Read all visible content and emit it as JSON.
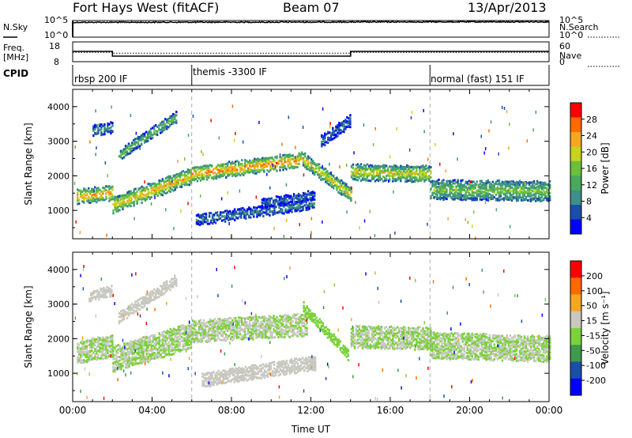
{
  "header": {
    "station": "Fort Hays West (fitACF)",
    "beam": "Beam 07",
    "date": "13/Apr/2013"
  },
  "top_panels": {
    "nsky_label": "N.Sky",
    "nsearch_label": "N.Search",
    "freq_label_1": "Freq.",
    "freq_label_2": "[MHz]",
    "nave_label": "Nave",
    "cpid_label": "CPID",
    "nsky_ticks": [
      "10^5",
      "10^0"
    ],
    "nsearch_ticks": [
      "10^5",
      "10^0"
    ],
    "freq_ticks": [
      "18",
      "8"
    ],
    "nave_ticks": [
      "60",
      "0"
    ]
  },
  "cpid_segments": [
    {
      "label": "rbsp 200 IF",
      "start_hour": 0
    },
    {
      "label": "themis -3300 IF",
      "start_hour": 6
    },
    {
      "label": "normal (fast) 151 IF",
      "start_hour": 18
    }
  ],
  "colorbars": {
    "power": {
      "title": "Power [dB]",
      "ticks": [
        "28",
        "24",
        "20",
        "16",
        "12",
        "8",
        "4"
      ]
    },
    "velocity": {
      "title": "Velocity [m s⁻¹]",
      "ticks": [
        "200",
        "100",
        "50",
        "15",
        "-15",
        "-50",
        "-100",
        "-200"
      ]
    }
  },
  "chart_data": [
    {
      "type": "line",
      "panel": "noise",
      "ylabel": "N.Sky / N.Search",
      "y_scale": "log",
      "ylim": [
        1,
        100000
      ],
      "x_hours": [
        0,
        0.1,
        6,
        12,
        18,
        24
      ],
      "series": [
        {
          "name": "N.Sky",
          "values": [
            10000,
            30000,
            32000,
            35000,
            40000,
            42000
          ]
        },
        {
          "name": "N.Search",
          "values": [
            10000,
            25000,
            28000,
            30000,
            36000,
            38000
          ]
        }
      ]
    },
    {
      "type": "line",
      "panel": "frequency",
      "ylabel": "Freq. [MHz]",
      "ylim": [
        8,
        18
      ],
      "x_hours": [
        0,
        2,
        2,
        14,
        14,
        24
      ],
      "series": [
        {
          "name": "Freq.",
          "values": [
            13.2,
            13.2,
            10.8,
            10.8,
            13.2,
            13.2
          ]
        },
        {
          "name": "Nave",
          "values": [
            28,
            28,
            26,
            26,
            28,
            28
          ]
        }
      ]
    },
    {
      "type": "heatmap",
      "panel": "power",
      "ylabel": "Slant Range [km]",
      "xlabel": "Time UT",
      "x_ticks": [
        "00:00",
        "04:00",
        "08:00",
        "12:00",
        "16:00",
        "20:00",
        "00:00"
      ],
      "y_ticks": [
        "1000",
        "2000",
        "3000",
        "4000"
      ],
      "xlim": [
        0,
        24
      ],
      "ylim": [
        180,
        4500
      ],
      "colorscale": [
        "#0000ff",
        "#1a4fa8",
        "#3e8f8a",
        "#48a85e",
        "#6cbf3c",
        "#c6d41e",
        "#f5a623",
        "#ff6a00",
        "#ff0000"
      ],
      "value_range": [
        0,
        30
      ],
      "bands": [
        {
          "t0": 0.2,
          "t1": 2.0,
          "r0": 1400,
          "r1": 1500,
          "width": 380,
          "power": 20
        },
        {
          "t0": 2.0,
          "t1": 6.0,
          "r0": 1150,
          "r1": 2000,
          "width": 420,
          "power": 19
        },
        {
          "t0": 6.0,
          "t1": 11.5,
          "r0": 2050,
          "r1": 2450,
          "width": 380,
          "power": 21
        },
        {
          "t0": 11.5,
          "t1": 14.0,
          "r0": 2500,
          "r1": 1450,
          "width": 360,
          "power": 18
        },
        {
          "t0": 14.0,
          "t1": 18.0,
          "r0": 2100,
          "r1": 2050,
          "width": 420,
          "power": 17
        },
        {
          "t0": 18.0,
          "t1": 24.0,
          "r0": 1600,
          "r1": 1550,
          "width": 520,
          "power": 13
        },
        {
          "t0": 1.0,
          "t1": 2.0,
          "r0": 3300,
          "r1": 3400,
          "width": 260,
          "power": 9
        },
        {
          "t0": 2.3,
          "t1": 5.2,
          "r0": 2600,
          "r1": 3700,
          "width": 260,
          "power": 12
        },
        {
          "t0": 6.2,
          "t1": 12.2,
          "r0": 720,
          "r1": 1200,
          "width": 260,
          "power": 7
        },
        {
          "t0": 9.5,
          "t1": 12.2,
          "r0": 1200,
          "r1": 1450,
          "width": 220,
          "power": 6
        },
        {
          "t0": 12.5,
          "t1": 14.0,
          "r0": 3000,
          "r1": 3600,
          "width": 300,
          "power": 6
        }
      ]
    },
    {
      "type": "heatmap",
      "panel": "velocity",
      "ylabel": "Slant Range [km]",
      "xlabel": "Time UT",
      "x_ticks": [
        "00:00",
        "04:00",
        "08:00",
        "12:00",
        "16:00",
        "20:00",
        "00:00"
      ],
      "y_ticks": [
        "1000",
        "2000",
        "3000",
        "4000"
      ],
      "xlim": [
        0,
        24
      ],
      "ylim": [
        180,
        4500
      ],
      "colorscale": [
        "#ff0000",
        "#ff6a00",
        "#f5a623",
        "#c8c8c0",
        "#7bd13a",
        "#3e9a4e",
        "#1a4fa8",
        "#0000ff"
      ],
      "value_range": [
        -250,
        250
      ],
      "bands": [
        {
          "t0": 0.2,
          "t1": 2.0,
          "r0": 1600,
          "r1": 1800,
          "width": 600,
          "velocity": 0
        },
        {
          "t0": 2.0,
          "t1": 6.0,
          "r0": 1400,
          "r1": 2100,
          "width": 700,
          "velocity": 0
        },
        {
          "t0": 6.0,
          "t1": 11.8,
          "r0": 2200,
          "r1": 2400,
          "width": 600,
          "velocity": 0
        },
        {
          "t0": 14.0,
          "t1": 18.0,
          "r0": 2050,
          "r1": 2000,
          "width": 600,
          "velocity": 0
        },
        {
          "t0": 18.0,
          "t1": 24.0,
          "r0": 1800,
          "r1": 1700,
          "width": 700,
          "velocity": 0
        },
        {
          "t0": 0.8,
          "t1": 2.0,
          "r0": 3200,
          "r1": 3400,
          "width": 250,
          "velocity": -40
        },
        {
          "t0": 2.3,
          "t1": 5.2,
          "r0": 2600,
          "r1": 3700,
          "width": 260,
          "velocity": -45
        },
        {
          "t0": 6.5,
          "t1": 12.2,
          "r0": 800,
          "r1": 1300,
          "width": 360,
          "velocity": -45
        },
        {
          "t0": 11.6,
          "t1": 13.9,
          "r0": 2900,
          "r1": 1500,
          "width": 260,
          "velocity": 30
        }
      ]
    }
  ]
}
